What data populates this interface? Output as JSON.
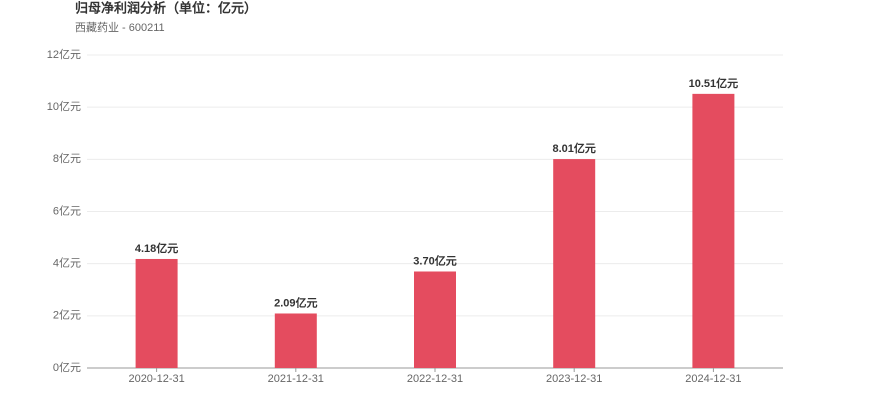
{
  "chart_data": {
    "type": "bar",
    "title": "归母净利润分析（单位：亿元）",
    "subtitle": "西藏药业 - 600211",
    "categories": [
      "2020-12-31",
      "2021-12-31",
      "2022-12-31",
      "2023-12-31",
      "2024-12-31"
    ],
    "values": [
      4.18,
      2.09,
      3.7,
      8.01,
      10.51
    ],
    "value_labels": [
      "4.18亿元",
      "2.09亿元",
      "3.70亿元",
      "8.01亿元",
      "10.51亿元"
    ],
    "color": "#e44c5f",
    "ylim": [
      0,
      12
    ],
    "yticks": [
      {
        "value": 0,
        "label": "0亿元"
      },
      {
        "value": 2,
        "label": "2亿元"
      },
      {
        "value": 4,
        "label": "4亿元"
      },
      {
        "value": 6,
        "label": "6亿元"
      },
      {
        "value": 8,
        "label": "8亿元"
      },
      {
        "value": 10,
        "label": "10亿元"
      },
      {
        "value": 12,
        "label": "12亿元"
      }
    ],
    "grid": true
  }
}
